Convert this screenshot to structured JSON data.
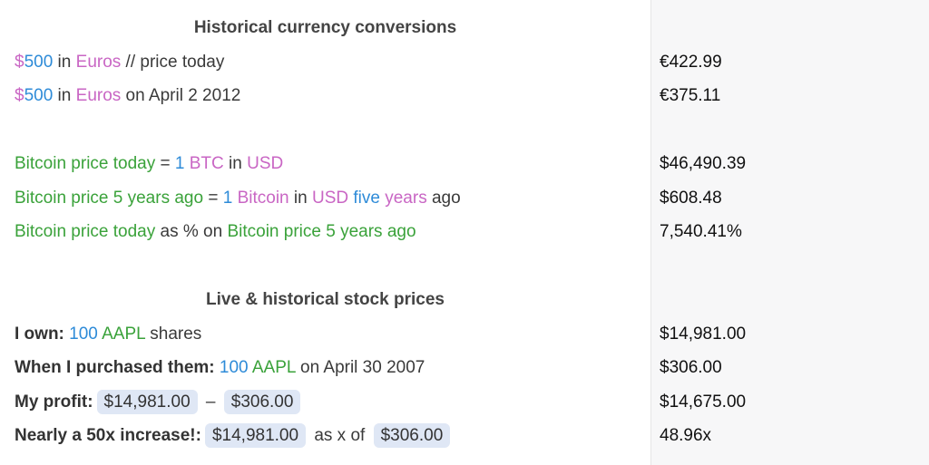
{
  "sheet": {
    "sections": [
      {
        "title": "Historical currency conversions",
        "groups": [
          [
            {
              "segments": [
                {
                  "text": "$",
                  "color": "#c966c4"
                },
                {
                  "text": "500",
                  "color": "#2e8bd8"
                },
                {
                  "text": " in "
                },
                {
                  "text": "Euros",
                  "color": "#c966c4"
                },
                {
                  "text": " // price today"
                }
              ],
              "result": "€422.99"
            },
            {
              "segments": [
                {
                  "text": "$",
                  "color": "#c966c4"
                },
                {
                  "text": "500",
                  "color": "#2e8bd8"
                },
                {
                  "text": " in "
                },
                {
                  "text": "Euros",
                  "color": "#c966c4"
                },
                {
                  "text": " on April 2 2012"
                }
              ],
              "result": "€375.11"
            }
          ],
          [
            {
              "segments": [
                {
                  "text": "Bitcoin price today",
                  "color": "#3aa23a"
                },
                {
                  "text": " = "
                },
                {
                  "text": "1",
                  "color": "#2e8bd8"
                },
                {
                  "text": " BTC",
                  "color": "#c966c4"
                },
                {
                  "text": " in "
                },
                {
                  "text": "USD",
                  "color": "#c966c4"
                }
              ],
              "result": "$46,490.39"
            },
            {
              "segments": [
                {
                  "text": "Bitcoin price 5 years ago",
                  "color": "#3aa23a"
                },
                {
                  "text": " = "
                },
                {
                  "text": "1",
                  "color": "#2e8bd8"
                },
                {
                  "text": " Bitcoin",
                  "color": "#c966c4"
                },
                {
                  "text": " in "
                },
                {
                  "text": "USD",
                  "color": "#c966c4"
                },
                {
                  "text": " five",
                  "color": "#2e8bd8"
                },
                {
                  "text": " years",
                  "color": "#c966c4"
                },
                {
                  "text": " ago"
                }
              ],
              "result": "$608.48"
            },
            {
              "segments": [
                {
                  "text": "Bitcoin price today",
                  "color": "#3aa23a"
                },
                {
                  "text": " as % on "
                },
                {
                  "text": "Bitcoin price 5 years ago",
                  "color": "#3aa23a"
                }
              ],
              "result": "7,540.41%"
            }
          ]
        ]
      },
      {
        "title": "Live & historical stock prices",
        "groups": [
          [
            {
              "segments": [
                {
                  "text": "I own:",
                  "bold": true
                },
                {
                  "text": " 100",
                  "color": "#2e8bd8"
                },
                {
                  "text": " AAPL",
                  "color": "#3aa23a"
                },
                {
                  "text": " shares"
                }
              ],
              "result": "$14,981.00"
            },
            {
              "segments": [
                {
                  "text": "When I purchased them:",
                  "bold": true
                },
                {
                  "text": " 100",
                  "color": "#2e8bd8"
                },
                {
                  "text": " AAPL",
                  "color": "#3aa23a"
                },
                {
                  "text": " on April 30 2007"
                }
              ],
              "result": "$306.00"
            },
            {
              "segments": [
                {
                  "text": "My profit:",
                  "bold": true
                },
                {
                  "text": "$14,981.00",
                  "pill": true
                },
                {
                  "text": " – "
                },
                {
                  "text": "$306.00",
                  "pill": true
                }
              ],
              "result": "$14,675.00"
            },
            {
              "segments": [
                {
                  "text": "Nearly a 50x increase!:",
                  "bold": true
                },
                {
                  "text": "$14,981.00",
                  "pill": true
                },
                {
                  "text": " as x of "
                },
                {
                  "text": "$306.00",
                  "pill": true
                }
              ],
              "result": "48.96x"
            }
          ]
        ]
      }
    ]
  }
}
